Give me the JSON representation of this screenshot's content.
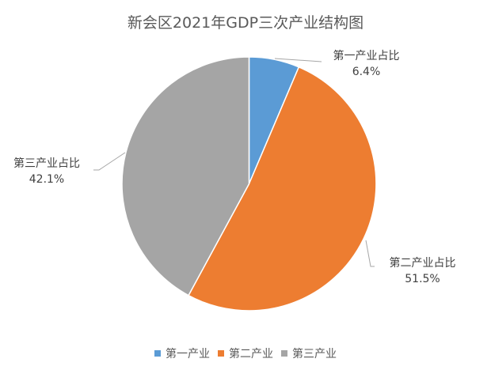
{
  "chart_data": {
    "type": "pie",
    "title": "新会区2021年GDP三次产业结构图",
    "categories": [
      "第一产业",
      "第二产业",
      "第三产业"
    ],
    "values": [
      6.4,
      51.5,
      42.1
    ],
    "unit": "%",
    "colors": [
      "#5b9bd5",
      "#ed7d31",
      "#a5a5a5"
    ],
    "data_labels": [
      {
        "name": "第一产业占比",
        "value": "6.4%"
      },
      {
        "name": "第二产业占比",
        "value": "51.5%"
      },
      {
        "name": "第三产业占比",
        "value": "42.1%"
      }
    ],
    "legend_position": "bottom",
    "start_angle": "12 o'clock, clockwise"
  },
  "legend": {
    "items": [
      {
        "label": "第一产业",
        "color": "#5b9bd5"
      },
      {
        "label": "第二产业",
        "color": "#ed7d31"
      },
      {
        "label": "第三产业",
        "color": "#a5a5a5"
      }
    ]
  }
}
